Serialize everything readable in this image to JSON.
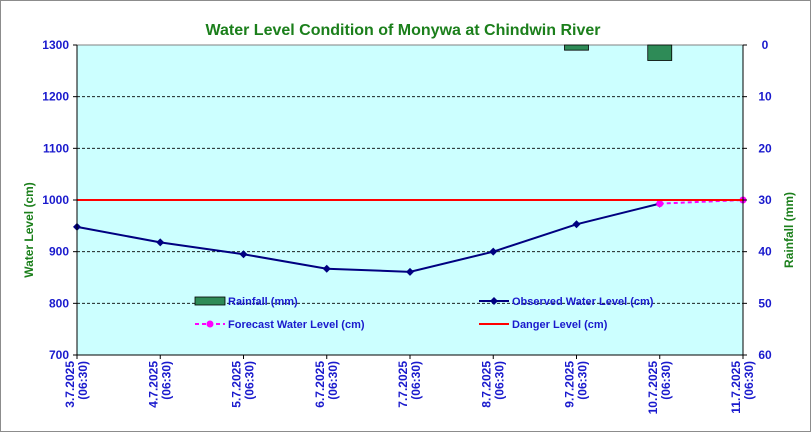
{
  "chart_data": {
    "type": "line",
    "title": "Water Level Condition of Monywa at Chindwin River",
    "ylabel": "Water Level (cm)",
    "y2label": "Rainfall (mm)",
    "ylim": [
      700,
      1300
    ],
    "y_ticks": [
      "1300",
      "1200",
      "1100",
      "1000",
      "900",
      "800",
      "700"
    ],
    "y2lim": [
      0,
      60
    ],
    "y2_inverted": true,
    "y2_ticks": [
      "0",
      "10",
      "20",
      "30",
      "40",
      "50",
      "60"
    ],
    "categories": [
      [
        "3.7.2025",
        "(06:30)"
      ],
      [
        "4.7.2025",
        "(06:30)"
      ],
      [
        "5.7.2025",
        "(06:30)"
      ],
      [
        "6.7.2025",
        "(06:30)"
      ],
      [
        "7.7.2025",
        "(06:30)"
      ],
      [
        "8.7.2025",
        "(06:30)"
      ],
      [
        "9.7.2025",
        "(06:30)"
      ],
      [
        "10.7.2025",
        "(06:30)"
      ],
      [
        "11.7.2025",
        "(06:30)"
      ]
    ],
    "series": [
      {
        "name": "Rainfall (mm)",
        "kind": "bar",
        "axis": "right",
        "color": "#2e8b57",
        "values": [
          null,
          null,
          null,
          null,
          null,
          null,
          1,
          3,
          null
        ]
      },
      {
        "name": "Observed Water Level (cm)",
        "kind": "line",
        "axis": "left",
        "color": "#000080",
        "values": [
          948,
          918,
          895,
          867,
          861,
          900,
          953,
          993,
          null
        ]
      },
      {
        "name": "Forecast Water Level (cm)",
        "kind": "line-dashed",
        "axis": "left",
        "color": "#ff00ff",
        "values": [
          null,
          null,
          null,
          null,
          null,
          null,
          null,
          993,
          1000
        ]
      },
      {
        "name": "Danger Level (cm)",
        "kind": "hline",
        "axis": "left",
        "color": "#ff0000",
        "value": 1000
      }
    ],
    "grid": true,
    "grid_style": "dashed horizontal",
    "plot_background": "#ccffff",
    "legend_position": "inside-bottom",
    "legend": [
      "Rainfall (mm)",
      "Observed Water Level (cm)",
      "Forecast Water Level (cm)",
      "Danger Level (cm)"
    ]
  }
}
